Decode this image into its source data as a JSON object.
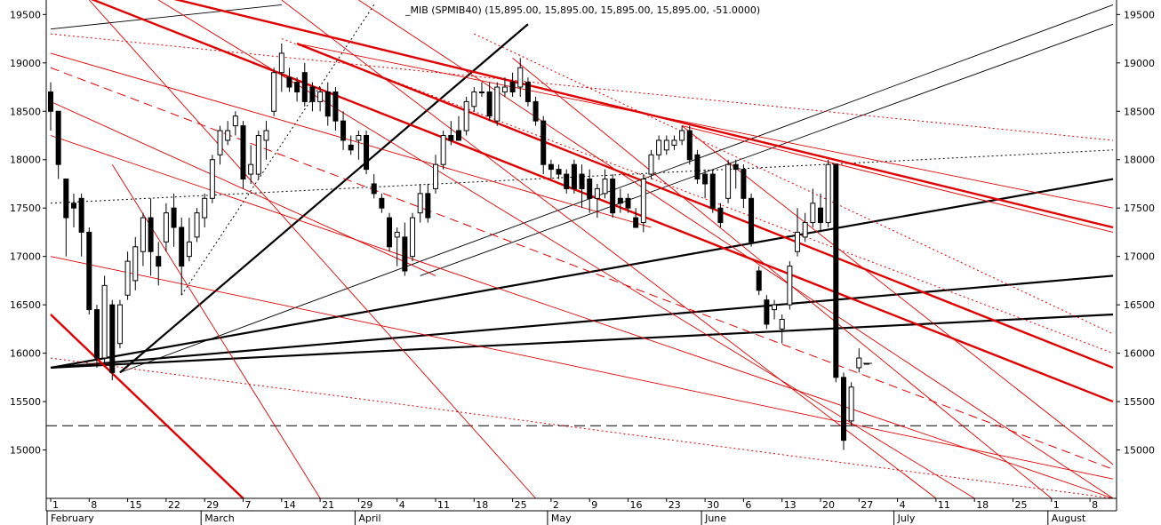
{
  "chart_data": {
    "type": "candlestick",
    "title": "_MIB (SPMIB40) (15,895.00, 15,895.00, 15,895.00, 15,895.00, -51.0000)",
    "ylim": [
      14500,
      19650
    ],
    "y_ticks": [
      15000,
      15500,
      16000,
      16500,
      17000,
      17500,
      18000,
      18500,
      19000,
      19500
    ],
    "x_day_ticks": [
      "1",
      "8",
      "15",
      "22",
      "29",
      "7",
      "14",
      "21",
      "29",
      "4",
      "11",
      "18",
      "25",
      "2",
      "9",
      "16",
      "23",
      "30",
      "6",
      "13",
      "20",
      "27",
      "4",
      "11",
      "18",
      "25",
      "1",
      "8"
    ],
    "x_month_labels": [
      "February",
      "March",
      "April",
      "May",
      "June",
      "July",
      "August"
    ],
    "reference_level": 15250,
    "candles": [
      {
        "o": 18700,
        "h": 18800,
        "l": 18300,
        "c": 18500
      },
      {
        "o": 18500,
        "h": 18500,
        "l": 17800,
        "c": 17950
      },
      {
        "o": 17800,
        "h": 17800,
        "l": 17000,
        "c": 17400
      },
      {
        "o": 17550,
        "h": 17650,
        "l": 17300,
        "c": 17500
      },
      {
        "o": 17600,
        "h": 17650,
        "l": 17000,
        "c": 17250
      },
      {
        "o": 17250,
        "h": 17300,
        "l": 16400,
        "c": 16450
      },
      {
        "o": 16450,
        "h": 16500,
        "l": 15850,
        "c": 15950
      },
      {
        "o": 15950,
        "h": 16800,
        "l": 15900,
        "c": 16700
      },
      {
        "o": 16500,
        "h": 16550,
        "l": 15720,
        "c": 15800
      },
      {
        "o": 16100,
        "h": 16550,
        "l": 16050,
        "c": 16500
      },
      {
        "o": 16600,
        "h": 17050,
        "l": 16550,
        "c": 16950
      },
      {
        "o": 16750,
        "h": 17200,
        "l": 16650,
        "c": 17100
      },
      {
        "o": 17050,
        "h": 17450,
        "l": 16900,
        "c": 17400
      },
      {
        "o": 17400,
        "h": 17600,
        "l": 16800,
        "c": 17050
      },
      {
        "o": 17000,
        "h": 17150,
        "l": 16700,
        "c": 16900
      },
      {
        "o": 17150,
        "h": 17550,
        "l": 17050,
        "c": 17450
      },
      {
        "o": 17500,
        "h": 17650,
        "l": 17100,
        "c": 17300
      },
      {
        "o": 17300,
        "h": 17400,
        "l": 16600,
        "c": 16900
      },
      {
        "o": 17000,
        "h": 17400,
        "l": 16950,
        "c": 17150
      },
      {
        "o": 17200,
        "h": 17500,
        "l": 17150,
        "c": 17450
      },
      {
        "o": 17400,
        "h": 17650,
        "l": 17300,
        "c": 17600
      },
      {
        "o": 17600,
        "h": 18050,
        "l": 17550,
        "c": 18000
      },
      {
        "o": 18050,
        "h": 18350,
        "l": 17950,
        "c": 18300
      },
      {
        "o": 18200,
        "h": 18400,
        "l": 18150,
        "c": 18300
      },
      {
        "o": 18350,
        "h": 18500,
        "l": 18250,
        "c": 18450
      },
      {
        "o": 18350,
        "h": 18400,
        "l": 17700,
        "c": 17800
      },
      {
        "o": 17850,
        "h": 18150,
        "l": 17750,
        "c": 17950
      },
      {
        "o": 17850,
        "h": 18300,
        "l": 17800,
        "c": 18250
      },
      {
        "o": 18200,
        "h": 18400,
        "l": 18000,
        "c": 18300
      },
      {
        "o": 18500,
        "h": 18950,
        "l": 18450,
        "c": 18900
      },
      {
        "o": 18900,
        "h": 19200,
        "l": 18700,
        "c": 19100
      },
      {
        "o": 18850,
        "h": 18950,
        "l": 18700,
        "c": 18750
      },
      {
        "o": 18800,
        "h": 18850,
        "l": 18600,
        "c": 18700
      },
      {
        "o": 18900,
        "h": 19000,
        "l": 18550,
        "c": 18600
      },
      {
        "o": 18750,
        "h": 18800,
        "l": 18500,
        "c": 18600
      },
      {
        "o": 18600,
        "h": 18750,
        "l": 18500,
        "c": 18700
      },
      {
        "o": 18700,
        "h": 18800,
        "l": 18350,
        "c": 18450
      },
      {
        "o": 18700,
        "h": 18750,
        "l": 18300,
        "c": 18400
      },
      {
        "o": 18400,
        "h": 18500,
        "l": 18100,
        "c": 18200
      },
      {
        "o": 18150,
        "h": 18250,
        "l": 18050,
        "c": 18100
      },
      {
        "o": 18200,
        "h": 18300,
        "l": 18000,
        "c": 18250
      },
      {
        "o": 18250,
        "h": 18300,
        "l": 17850,
        "c": 17900
      },
      {
        "o": 17750,
        "h": 17850,
        "l": 17600,
        "c": 17650
      },
      {
        "o": 17600,
        "h": 17650,
        "l": 17450,
        "c": 17500
      },
      {
        "o": 17400,
        "h": 17450,
        "l": 17050,
        "c": 17100
      },
      {
        "o": 17200,
        "h": 17300,
        "l": 16900,
        "c": 17250
      },
      {
        "o": 17200,
        "h": 17350,
        "l": 16800,
        "c": 16850
      },
      {
        "o": 17000,
        "h": 17450,
        "l": 16950,
        "c": 17400
      },
      {
        "o": 17450,
        "h": 17750,
        "l": 17350,
        "c": 17650
      },
      {
        "o": 17650,
        "h": 17750,
        "l": 17350,
        "c": 17400
      },
      {
        "o": 17700,
        "h": 18050,
        "l": 17650,
        "c": 17950
      },
      {
        "o": 17950,
        "h": 18300,
        "l": 17900,
        "c": 18250
      },
      {
        "o": 18250,
        "h": 18400,
        "l": 18150,
        "c": 18200
      },
      {
        "o": 18300,
        "h": 18450,
        "l": 18250,
        "c": 18200
      },
      {
        "o": 18300,
        "h": 18650,
        "l": 18250,
        "c": 18600
      },
      {
        "o": 18550,
        "h": 18750,
        "l": 18500,
        "c": 18700
      },
      {
        "o": 18700,
        "h": 18800,
        "l": 18650,
        "c": 18700
      },
      {
        "o": 18700,
        "h": 18800,
        "l": 18400,
        "c": 18450
      },
      {
        "o": 18400,
        "h": 18800,
        "l": 18350,
        "c": 18750
      },
      {
        "o": 18700,
        "h": 18850,
        "l": 18650,
        "c": 18750
      },
      {
        "o": 18800,
        "h": 18900,
        "l": 18650,
        "c": 18700
      },
      {
        "o": 18750,
        "h": 19050,
        "l": 18650,
        "c": 18950
      },
      {
        "o": 18800,
        "h": 18850,
        "l": 18550,
        "c": 18600
      },
      {
        "o": 18600,
        "h": 18650,
        "l": 18350,
        "c": 18400
      },
      {
        "o": 18400,
        "h": 18450,
        "l": 17850,
        "c": 17950
      },
      {
        "o": 17950,
        "h": 18000,
        "l": 17800,
        "c": 17900
      },
      {
        "o": 17900,
        "h": 17950,
        "l": 17800,
        "c": 17850
      },
      {
        "o": 17850,
        "h": 17900,
        "l": 17650,
        "c": 17700
      },
      {
        "o": 17950,
        "h": 18000,
        "l": 17650,
        "c": 17700
      },
      {
        "o": 17850,
        "h": 17950,
        "l": 17500,
        "c": 17700
      },
      {
        "o": 17800,
        "h": 17900,
        "l": 17450,
        "c": 17600
      },
      {
        "o": 17600,
        "h": 17750,
        "l": 17400,
        "c": 17700
      },
      {
        "o": 17650,
        "h": 17900,
        "l": 17600,
        "c": 17800
      },
      {
        "o": 17800,
        "h": 17850,
        "l": 17400,
        "c": 17450
      },
      {
        "o": 17600,
        "h": 17700,
        "l": 17450,
        "c": 17550
      },
      {
        "o": 17600,
        "h": 17650,
        "l": 17450,
        "c": 17500
      },
      {
        "o": 17400,
        "h": 17500,
        "l": 17300,
        "c": 17300
      },
      {
        "o": 17350,
        "h": 17850,
        "l": 17250,
        "c": 17800
      },
      {
        "o": 17850,
        "h": 18100,
        "l": 17800,
        "c": 18050
      },
      {
        "o": 18050,
        "h": 18250,
        "l": 18000,
        "c": 18200
      },
      {
        "o": 18100,
        "h": 18250,
        "l": 18050,
        "c": 18200
      },
      {
        "o": 18150,
        "h": 18250,
        "l": 18100,
        "c": 18200
      },
      {
        "o": 18200,
        "h": 18350,
        "l": 18150,
        "c": 18300
      },
      {
        "o": 18300,
        "h": 18350,
        "l": 17950,
        "c": 18000
      },
      {
        "o": 18050,
        "h": 18100,
        "l": 17750,
        "c": 17800
      },
      {
        "o": 17850,
        "h": 17900,
        "l": 17600,
        "c": 17750
      },
      {
        "o": 17850,
        "h": 17900,
        "l": 17450,
        "c": 17500
      },
      {
        "o": 17500,
        "h": 17550,
        "l": 17300,
        "c": 17350
      },
      {
        "o": 17600,
        "h": 18000,
        "l": 17550,
        "c": 17950
      },
      {
        "o": 17950,
        "h": 18000,
        "l": 17700,
        "c": 17900
      },
      {
        "o": 17900,
        "h": 17950,
        "l": 17500,
        "c": 17600
      },
      {
        "o": 17600,
        "h": 17650,
        "l": 17100,
        "c": 17150
      },
      {
        "o": 16850,
        "h": 16900,
        "l": 16600,
        "c": 16650
      },
      {
        "o": 16550,
        "h": 16600,
        "l": 16250,
        "c": 16300
      },
      {
        "o": 16450,
        "h": 16550,
        "l": 16350,
        "c": 16500
      },
      {
        "o": 16250,
        "h": 16400,
        "l": 16100,
        "c": 16350
      },
      {
        "o": 16500,
        "h": 16950,
        "l": 16450,
        "c": 16900
      },
      {
        "o": 17050,
        "h": 17500,
        "l": 17000,
        "c": 17250
      },
      {
        "o": 17200,
        "h": 17450,
        "l": 17150,
        "c": 17350
      },
      {
        "o": 17350,
        "h": 17700,
        "l": 17300,
        "c": 17550
      },
      {
        "o": 17500,
        "h": 17650,
        "l": 17250,
        "c": 17350
      },
      {
        "o": 17350,
        "h": 18000,
        "l": 17300,
        "c": 17950
      },
      {
        "o": 17950,
        "h": 17950,
        "l": 15700,
        "c": 15750
      },
      {
        "o": 15750,
        "h": 15800,
        "l": 15000,
        "c": 15100
      },
      {
        "o": 15300,
        "h": 15700,
        "l": 15250,
        "c": 15650
      },
      {
        "o": 15850,
        "h": 16050,
        "l": 15800,
        "c": 15950
      },
      {
        "o": 15895,
        "h": 15895,
        "l": 15895,
        "c": 15895
      }
    ],
    "trendlines": [
      {
        "kind": "black-thick",
        "p1": [
          9,
          15800
        ],
        "p2": [
          62,
          19400
        ]
      },
      {
        "kind": "black-thick",
        "p1": [
          0,
          15850
        ],
        "p2": [
          138,
          17800
        ]
      },
      {
        "kind": "black-thick",
        "p1": [
          0,
          15850
        ],
        "p2": [
          138,
          16800
        ]
      },
      {
        "kind": "black-thick",
        "p1": [
          0,
          15850
        ],
        "p2": [
          138,
          16400
        ]
      },
      {
        "kind": "black-thin",
        "p1": [
          9,
          15800
        ],
        "p2": [
          138,
          19600
        ]
      },
      {
        "kind": "black-thin",
        "p1": [
          48,
          16800
        ],
        "p2": [
          138,
          19400
        ]
      },
      {
        "kind": "black-thin",
        "p1": [
          0,
          19350
        ],
        "p2": [
          30,
          19600
        ]
      },
      {
        "kind": "black-dotted",
        "p1": [
          0,
          17550
        ],
        "p2": [
          138,
          18100
        ]
      },
      {
        "kind": "black-dotted",
        "p1": [
          17,
          16600
        ],
        "p2": [
          42,
          19600
        ]
      },
      {
        "kind": "red-thick",
        "p1": [
          0,
          16400
        ],
        "p2": [
          25,
          14500
        ]
      },
      {
        "kind": "red-thick",
        "p1": [
          4,
          19700
        ],
        "p2": [
          138,
          15500
        ]
      },
      {
        "kind": "red-thick",
        "p1": [
          14,
          19700
        ],
        "p2": [
          138,
          17300
        ]
      },
      {
        "kind": "red-thick",
        "p1": [
          32,
          19200
        ],
        "p2": [
          138,
          15850
        ]
      },
      {
        "kind": "red-thin",
        "p1": [
          0,
          18250
        ],
        "p2": [
          138,
          14500
        ]
      },
      {
        "kind": "red-thin",
        "p1": [
          0,
          17000
        ],
        "p2": [
          138,
          14700
        ]
      },
      {
        "kind": "red-thin",
        "p1": [
          0,
          18600
        ],
        "p2": [
          50,
          16800
        ]
      },
      {
        "kind": "red-thin",
        "p1": [
          0,
          19100
        ],
        "p2": [
          78,
          17300
        ]
      },
      {
        "kind": "red-thin",
        "p1": [
          32,
          19200
        ],
        "p2": [
          138,
          17500
        ]
      },
      {
        "kind": "red-thin",
        "p1": [
          8,
          17950
        ],
        "p2": [
          35,
          14500
        ]
      },
      {
        "kind": "red-thin",
        "p1": [
          14,
          19650
        ],
        "p2": [
          120,
          14500
        ]
      },
      {
        "kind": "red-thin",
        "p1": [
          60,
          19050
        ],
        "p2": [
          130,
          14500
        ]
      },
      {
        "kind": "red-thin",
        "p1": [
          82,
          18350
        ],
        "p2": [
          138,
          14850
        ]
      },
      {
        "kind": "red-thin",
        "p1": [
          82,
          18350
        ],
        "p2": [
          138,
          17250
        ]
      },
      {
        "kind": "red-thin",
        "p1": [
          30,
          19650
        ],
        "p2": [
          115,
          14500
        ]
      },
      {
        "kind": "red-thin",
        "p1": [
          5,
          19650
        ],
        "p2": [
          63,
          14500
        ]
      },
      {
        "kind": "red-thin",
        "p1": [
          40,
          19650
        ],
        "p2": [
          138,
          14500
        ]
      },
      {
        "kind": "red-dashed",
        "p1": [
          0,
          18950
        ],
        "p2": [
          138,
          14800
        ]
      },
      {
        "kind": "red-dotted",
        "p1": [
          0,
          19300
        ],
        "p2": [
          138,
          18200
        ]
      },
      {
        "kind": "red-dotted",
        "p1": [
          30,
          19250
        ],
        "p2": [
          138,
          16000
        ]
      },
      {
        "kind": "red-dotted",
        "p1": [
          0,
          15950
        ],
        "p2": [
          138,
          14500
        ]
      },
      {
        "kind": "red-dotted",
        "p1": [
          55,
          19300
        ],
        "p2": [
          138,
          16200
        ]
      }
    ]
  }
}
